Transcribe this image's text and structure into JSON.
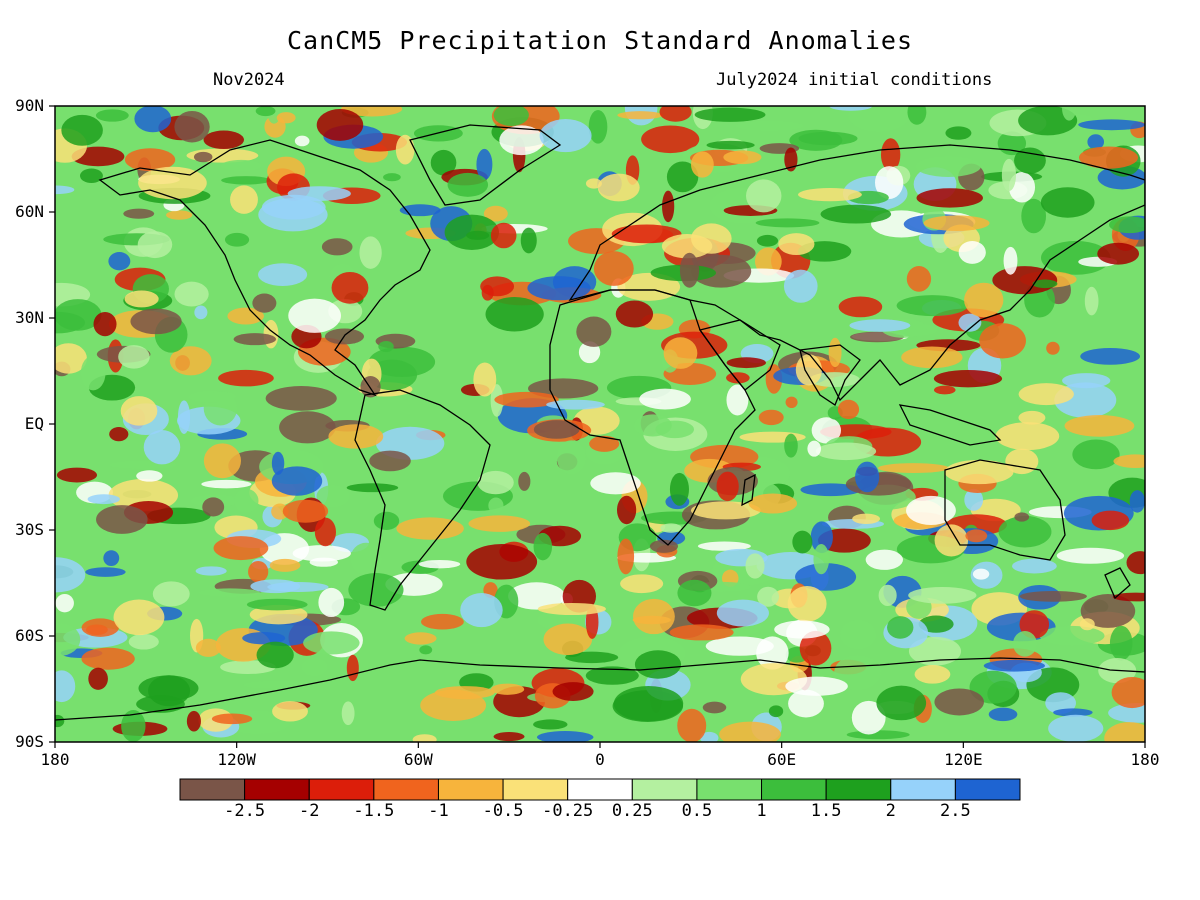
{
  "header": {
    "title": "CanCM5 Precipitation Standard Anomalies",
    "valid_month": "Nov2024",
    "initial_conditions": "July2024 initial conditions"
  },
  "axes": {
    "lat_labels": [
      "90N",
      "60N",
      "30N",
      "EQ",
      "30S",
      "60S",
      "90S"
    ],
    "lat_values": [
      90,
      60,
      30,
      0,
      -30,
      -60,
      -90
    ],
    "lon_labels": [
      "180",
      "120W",
      "60W",
      "0",
      "60E",
      "120E",
      "180"
    ],
    "lon_values": [
      -180,
      -120,
      -60,
      0,
      60,
      120,
      180
    ]
  },
  "colorbar": {
    "colors": [
      "#7a5548",
      "#a50000",
      "#dc1e0a",
      "#f0641e",
      "#f7b43c",
      "#fae178",
      "#ffffff",
      "#b4f0a0",
      "#78e06e",
      "#3cbe3c",
      "#1ea01e",
      "#96d2fa",
      "#1e64d2"
    ],
    "tick_labels": [
      "-2.5",
      "-2",
      "-1.5",
      "-1",
      "-0.5",
      "-0.25",
      "0.25",
      "0.5",
      "1",
      "1.5",
      "2",
      "2.5"
    ]
  }
}
